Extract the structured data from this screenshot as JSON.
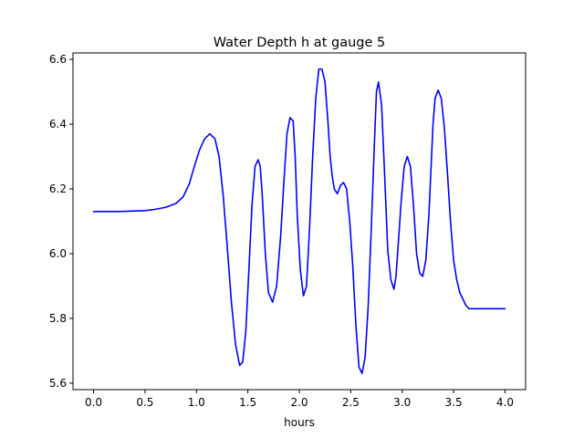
{
  "chart_data": {
    "type": "line",
    "title": "Water Depth h at gauge 5",
    "xlabel": "hours",
    "ylabel": "",
    "xlim": [
      -0.2,
      4.2
    ],
    "ylim": [
      5.58,
      6.62
    ],
    "xticks": [
      0.0,
      0.5,
      1.0,
      1.5,
      2.0,
      2.5,
      3.0,
      3.5,
      4.0
    ],
    "xtick_labels": [
      "0.0",
      "0.5",
      "1.0",
      "1.5",
      "2.0",
      "2.5",
      "3.0",
      "3.5",
      "4.0"
    ],
    "yticks": [
      5.6,
      5.8,
      6.0,
      6.2,
      6.4,
      6.6
    ],
    "ytick_labels": [
      "5.6",
      "5.8",
      "6.0",
      "6.2",
      "6.4",
      "6.6"
    ],
    "grid": false,
    "series": [
      {
        "color": "#0000ff",
        "x": [
          0.0,
          0.25,
          0.5,
          0.6,
          0.7,
          0.8,
          0.87,
          0.93,
          0.98,
          1.03,
          1.08,
          1.13,
          1.18,
          1.22,
          1.26,
          1.3,
          1.34,
          1.38,
          1.42,
          1.45,
          1.48,
          1.51,
          1.54,
          1.57,
          1.6,
          1.62,
          1.64,
          1.67,
          1.7,
          1.74,
          1.78,
          1.82,
          1.85,
          1.88,
          1.91,
          1.94,
          1.96,
          1.98,
          2.01,
          2.04,
          2.07,
          2.1,
          2.13,
          2.16,
          2.19,
          2.22,
          2.25,
          2.28,
          2.3,
          2.32,
          2.34,
          2.37,
          2.4,
          2.43,
          2.46,
          2.49,
          2.52,
          2.55,
          2.58,
          2.61,
          2.64,
          2.67,
          2.7,
          2.73,
          2.75,
          2.77,
          2.8,
          2.83,
          2.86,
          2.89,
          2.92,
          2.94,
          2.96,
          2.99,
          3.02,
          3.05,
          3.08,
          3.11,
          3.14,
          3.17,
          3.2,
          3.23,
          3.26,
          3.28,
          3.3,
          3.32,
          3.35,
          3.38,
          3.41,
          3.44,
          3.47,
          3.5,
          3.53,
          3.56,
          3.59,
          3.62,
          3.65,
          3.68,
          3.7,
          3.72,
          3.75,
          3.78,
          3.81,
          3.84,
          3.87,
          3.9,
          3.93,
          3.96,
          3.98,
          4.0
        ],
        "y": [
          6.13,
          6.13,
          6.133,
          6.137,
          6.143,
          6.155,
          6.175,
          6.215,
          6.27,
          6.32,
          6.355,
          6.37,
          6.355,
          6.3,
          6.18,
          6.02,
          5.85,
          5.72,
          5.655,
          5.665,
          5.76,
          5.95,
          6.15,
          6.27,
          6.29,
          6.27,
          6.18,
          6.0,
          5.88,
          5.85,
          5.9,
          6.06,
          6.22,
          6.37,
          6.42,
          6.41,
          6.3,
          6.12,
          5.95,
          5.87,
          5.9,
          6.08,
          6.3,
          6.48,
          6.57,
          6.57,
          6.53,
          6.4,
          6.3,
          6.24,
          6.2,
          6.185,
          6.21,
          6.22,
          6.2,
          6.1,
          5.96,
          5.78,
          5.65,
          5.63,
          5.68,
          5.84,
          6.08,
          6.34,
          6.5,
          6.53,
          6.46,
          6.24,
          6.01,
          5.92,
          5.89,
          5.93,
          6.02,
          6.16,
          6.27,
          6.3,
          6.27,
          6.15,
          6.0,
          5.94,
          5.93,
          5.98,
          6.12,
          6.26,
          6.4,
          6.48,
          6.505,
          6.48,
          6.39,
          6.25,
          6.1,
          5.98,
          5.92,
          5.88,
          5.86,
          5.84,
          5.83,
          5.83,
          5.83,
          5.83,
          5.83,
          5.83,
          5.83,
          5.83,
          5.83,
          5.83,
          5.83,
          5.83,
          5.83,
          5.83
        ]
      }
    ]
  }
}
